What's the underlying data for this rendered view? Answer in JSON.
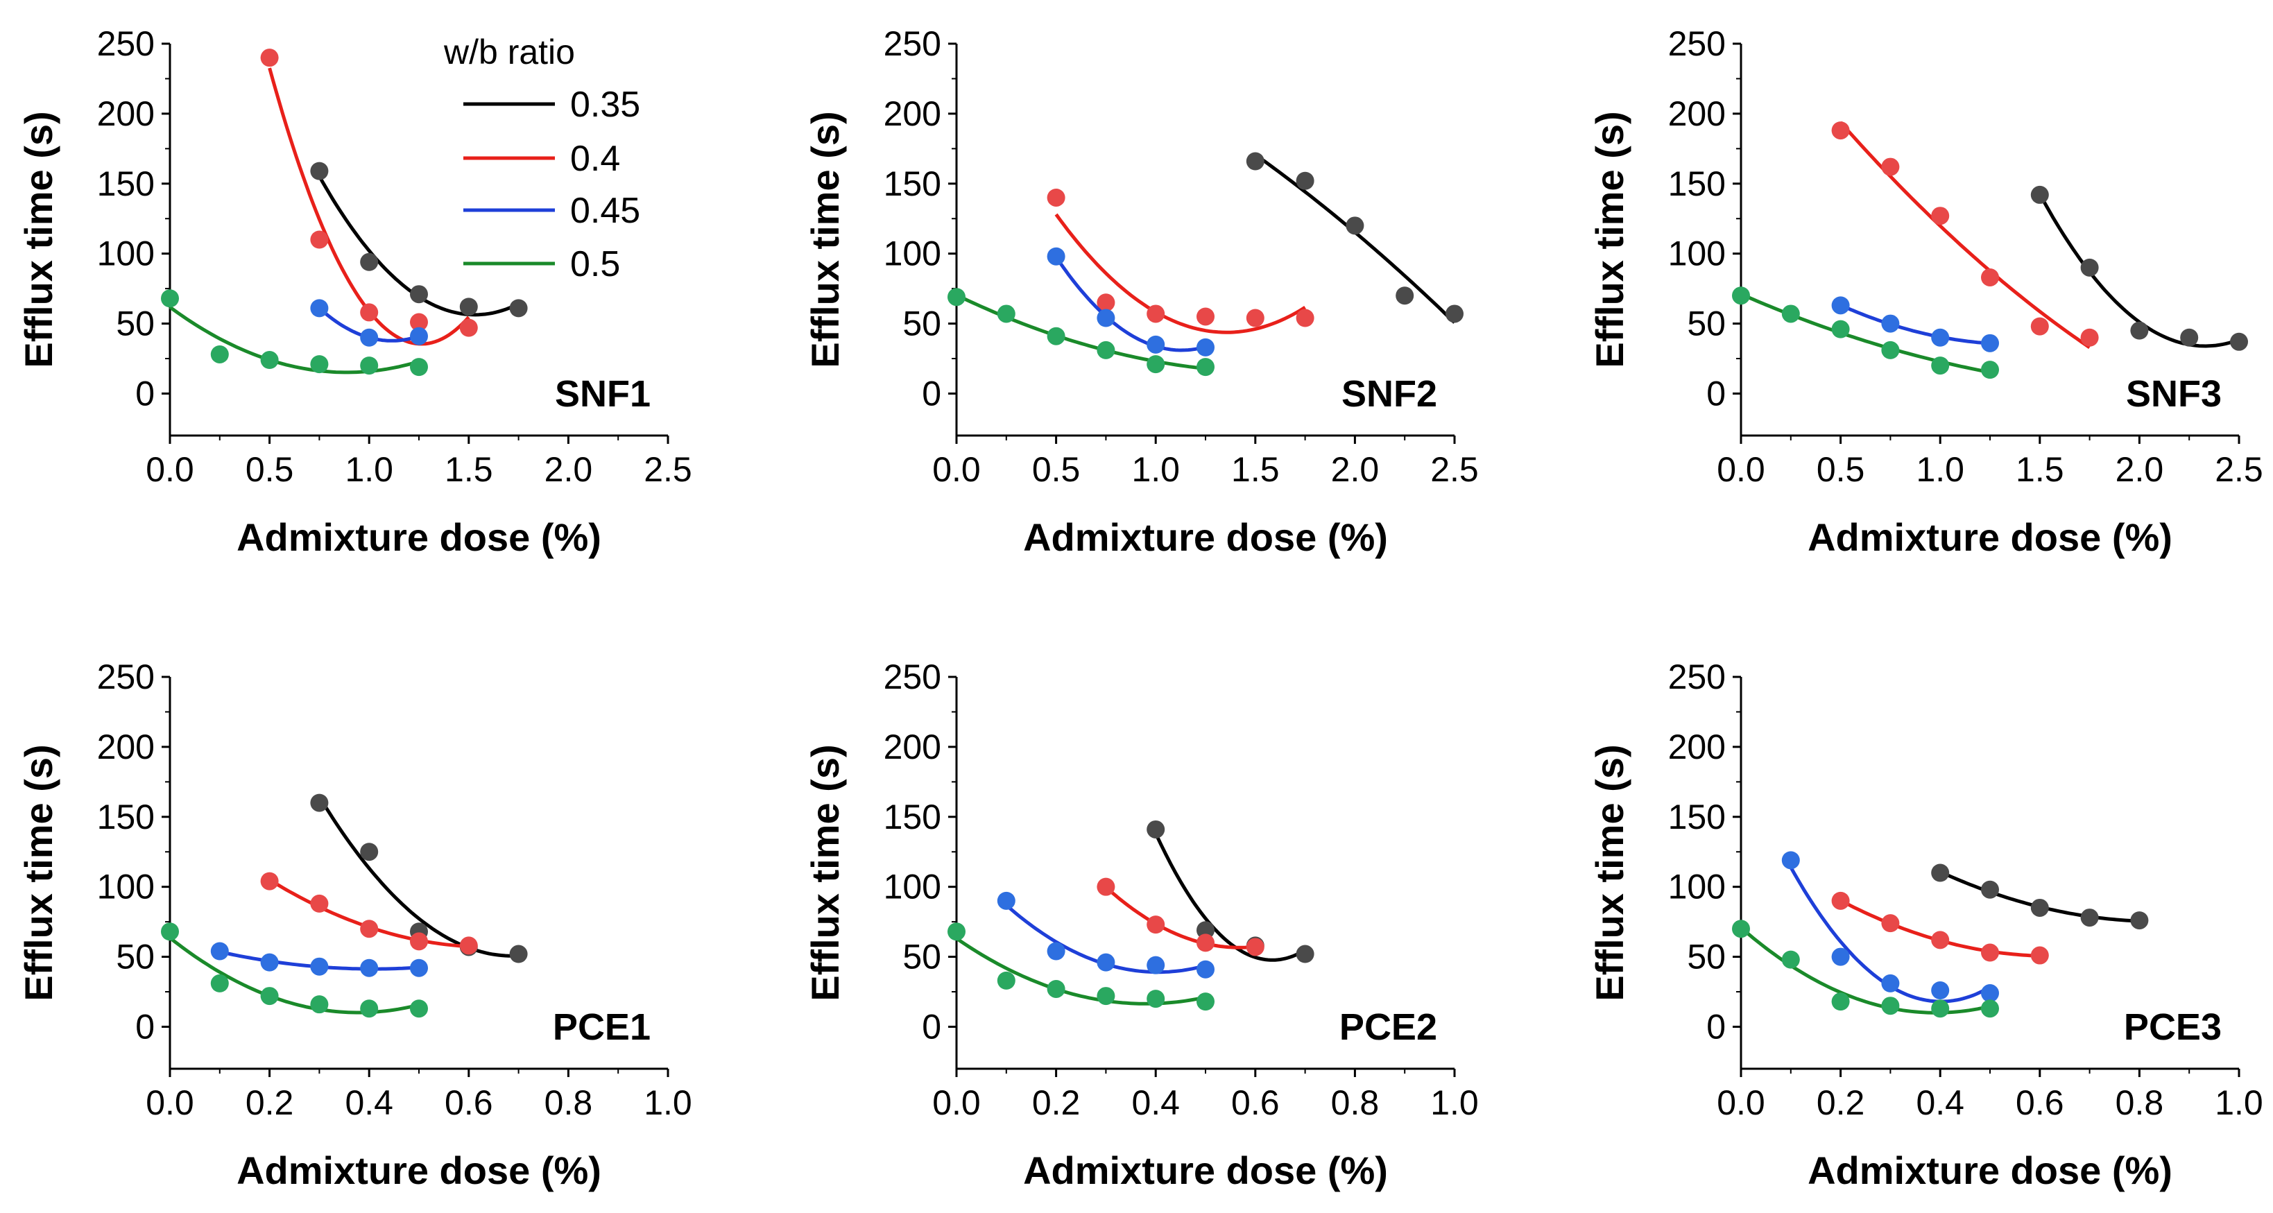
{
  "legend": {
    "title": "w/b ratio",
    "entries": [
      {
        "label": "0.35",
        "color": "#000000"
      },
      {
        "label": "0.4",
        "color": "#e8201a"
      },
      {
        "label": "0.45",
        "color": "#1e3fd8"
      },
      {
        "label": "0.5",
        "color": "#1a8a2a"
      }
    ]
  },
  "colors": {
    "line": {
      "0.35": "#000000",
      "0.4": "#e8201a",
      "0.45": "#1e3fd8",
      "0.5": "#1a8a2a"
    },
    "marker": {
      "0.35": "#4a4a4a",
      "0.4": "#e84848",
      "0.45": "#2e6fe0",
      "0.5": "#2aa860"
    }
  },
  "chart_data": [
    {
      "type": "scatter",
      "panel": "SNF1",
      "xlabel": "Admixture dose (%)",
      "ylabel": "Efflux time (s)",
      "xlim": [
        0,
        2.5
      ],
      "ylim": [
        -30,
        250
      ],
      "xticks": [
        "0.0",
        "0.5",
        "1.0",
        "1.5",
        "2.0",
        "2.5"
      ],
      "yticks": [
        "0",
        "50",
        "100",
        "150",
        "200",
        "250"
      ],
      "series": [
        {
          "name": "0.35",
          "x": [
            0.75,
            1.0,
            1.25,
            1.5,
            1.75
          ],
          "y": [
            159,
            94,
            71,
            62,
            61
          ]
        },
        {
          "name": "0.4",
          "x": [
            0.5,
            0.75,
            1.0,
            1.25,
            1.5
          ],
          "y": [
            240,
            110,
            58,
            51,
            47
          ]
        },
        {
          "name": "0.45",
          "x": [
            0.75,
            1.0,
            1.25
          ],
          "y": [
            61,
            40,
            41
          ]
        },
        {
          "name": "0.5",
          "x": [
            0.0,
            0.25,
            0.5,
            0.75,
            1.0,
            1.25
          ],
          "y": [
            68,
            28,
            24,
            21,
            20,
            19
          ]
        }
      ]
    },
    {
      "type": "scatter",
      "panel": "SNF2",
      "xlabel": "Admixture dose (%)",
      "ylabel": "Efflux time (s)",
      "xlim": [
        0,
        2.5
      ],
      "ylim": [
        -30,
        250
      ],
      "xticks": [
        "0.0",
        "0.5",
        "1.0",
        "1.5",
        "2.0",
        "2.5"
      ],
      "yticks": [
        "0",
        "50",
        "100",
        "150",
        "200",
        "250"
      ],
      "series": [
        {
          "name": "0.35",
          "x": [
            1.5,
            1.75,
            2.0,
            2.25,
            2.5
          ],
          "y": [
            166,
            152,
            120,
            70,
            57
          ]
        },
        {
          "name": "0.4",
          "x": [
            0.5,
            0.75,
            1.0,
            1.25,
            1.5,
            1.75
          ],
          "y": [
            140,
            65,
            57,
            55,
            54,
            54
          ]
        },
        {
          "name": "0.45",
          "x": [
            0.5,
            0.75,
            1.0,
            1.25
          ],
          "y": [
            98,
            54,
            35,
            33
          ]
        },
        {
          "name": "0.5",
          "x": [
            0.0,
            0.25,
            0.5,
            0.75,
            1.0,
            1.25
          ],
          "y": [
            69,
            57,
            41,
            31,
            21,
            19
          ]
        }
      ]
    },
    {
      "type": "scatter",
      "panel": "SNF3",
      "xlabel": "Admixture dose (%)",
      "ylabel": "Efflux time (s)",
      "xlim": [
        0,
        2.5
      ],
      "ylim": [
        -30,
        250
      ],
      "xticks": [
        "0.0",
        "0.5",
        "1.0",
        "1.5",
        "2.0",
        "2.5"
      ],
      "yticks": [
        "0",
        "50",
        "100",
        "150",
        "200",
        "250"
      ],
      "series": [
        {
          "name": "0.35",
          "x": [
            1.5,
            1.75,
            2.0,
            2.25,
            2.5
          ],
          "y": [
            142,
            90,
            45,
            40,
            37
          ]
        },
        {
          "name": "0.4",
          "x": [
            0.5,
            0.75,
            1.0,
            1.25,
            1.5,
            1.75
          ],
          "y": [
            188,
            162,
            127,
            83,
            48,
            40
          ]
        },
        {
          "name": "0.45",
          "x": [
            0.5,
            0.75,
            1.0,
            1.25
          ],
          "y": [
            63,
            50,
            40,
            36
          ]
        },
        {
          "name": "0.5",
          "x": [
            0.0,
            0.25,
            0.5,
            0.75,
            1.0,
            1.25
          ],
          "y": [
            70,
            57,
            46,
            31,
            20,
            17
          ]
        }
      ]
    },
    {
      "type": "scatter",
      "panel": "PCE1",
      "xlabel": "Admixture dose (%)",
      "ylabel": "Efflux time (s)",
      "xlim": [
        0,
        1.0
      ],
      "ylim": [
        -30,
        250
      ],
      "xticks": [
        "0.0",
        "0.2",
        "0.4",
        "0.6",
        "0.8",
        "1.0"
      ],
      "yticks": [
        "0",
        "50",
        "100",
        "150",
        "200",
        "250"
      ],
      "series": [
        {
          "name": "0.35",
          "x": [
            0.3,
            0.4,
            0.5,
            0.6,
            0.7
          ],
          "y": [
            160,
            125,
            68,
            57,
            52
          ]
        },
        {
          "name": "0.4",
          "x": [
            0.2,
            0.3,
            0.4,
            0.5,
            0.6
          ],
          "y": [
            104,
            88,
            70,
            61,
            58
          ]
        },
        {
          "name": "0.45",
          "x": [
            0.1,
            0.2,
            0.3,
            0.4,
            0.5
          ],
          "y": [
            54,
            46,
            43,
            42,
            42
          ]
        },
        {
          "name": "0.5",
          "x": [
            0.0,
            0.1,
            0.2,
            0.3,
            0.4,
            0.5
          ],
          "y": [
            68,
            31,
            22,
            16,
            13,
            13
          ]
        }
      ]
    },
    {
      "type": "scatter",
      "panel": "PCE2",
      "xlabel": "Admixture dose (%)",
      "ylabel": "Efflux time (s)",
      "xlim": [
        0,
        1.0
      ],
      "ylim": [
        -30,
        250
      ],
      "xticks": [
        "0.0",
        "0.2",
        "0.4",
        "0.6",
        "0.8",
        "1.0"
      ],
      "yticks": [
        "0",
        "50",
        "100",
        "150",
        "200",
        "250"
      ],
      "series": [
        {
          "name": "0.35",
          "x": [
            0.4,
            0.5,
            0.6,
            0.7
          ],
          "y": [
            141,
            69,
            58,
            52
          ]
        },
        {
          "name": "0.4",
          "x": [
            0.3,
            0.4,
            0.5,
            0.6
          ],
          "y": [
            100,
            73,
            60,
            57
          ]
        },
        {
          "name": "0.45",
          "x": [
            0.1,
            0.2,
            0.3,
            0.4,
            0.5
          ],
          "y": [
            90,
            54,
            46,
            44,
            41
          ]
        },
        {
          "name": "0.5",
          "x": [
            0.0,
            0.1,
            0.2,
            0.3,
            0.4,
            0.5
          ],
          "y": [
            68,
            33,
            27,
            22,
            20,
            18
          ]
        }
      ]
    },
    {
      "type": "scatter",
      "panel": "PCE3",
      "xlabel": "Admixture dose (%)",
      "ylabel": "Efflux time (s)",
      "xlim": [
        0,
        1.0
      ],
      "ylim": [
        -30,
        250
      ],
      "xticks": [
        "0.0",
        "0.2",
        "0.4",
        "0.6",
        "0.8",
        "1.0"
      ],
      "yticks": [
        "0",
        "50",
        "100",
        "150",
        "200",
        "250"
      ],
      "series": [
        {
          "name": "0.35",
          "x": [
            0.4,
            0.5,
            0.6,
            0.7,
            0.8
          ],
          "y": [
            110,
            98,
            85,
            78,
            76
          ]
        },
        {
          "name": "0.4",
          "x": [
            0.2,
            0.3,
            0.4,
            0.5,
            0.6
          ],
          "y": [
            90,
            74,
            62,
            53,
            51
          ]
        },
        {
          "name": "0.45",
          "x": [
            0.1,
            0.2,
            0.3,
            0.4,
            0.5
          ],
          "y": [
            119,
            50,
            31,
            26,
            24
          ]
        },
        {
          "name": "0.5",
          "x": [
            0.0,
            0.1,
            0.2,
            0.3,
            0.4,
            0.5
          ],
          "y": [
            70,
            48,
            18,
            15,
            13,
            13
          ]
        }
      ]
    }
  ]
}
